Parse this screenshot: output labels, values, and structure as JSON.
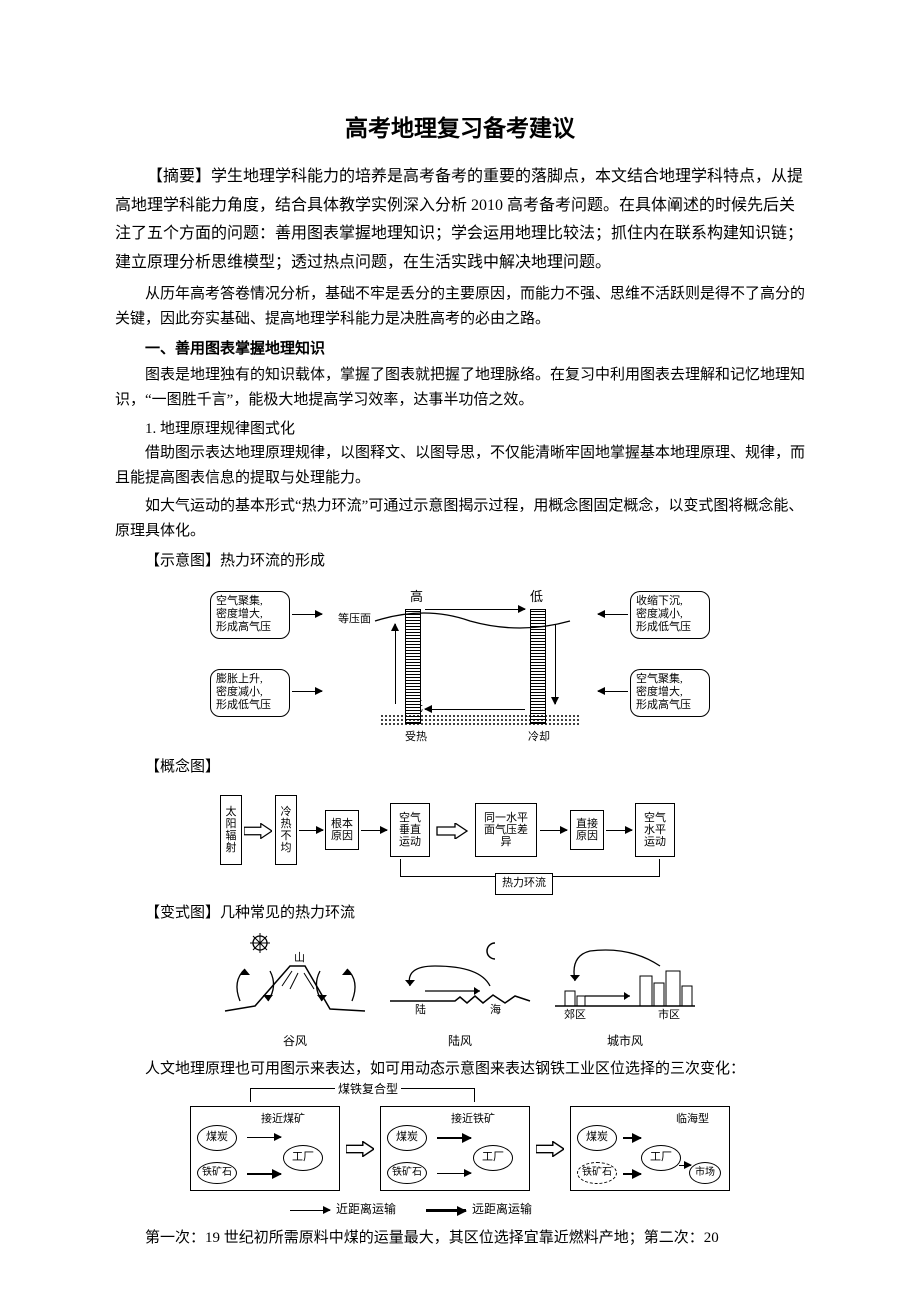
{
  "title": "高考地理复习备考建议",
  "abstract": "【摘要】学生地理学科能力的培养是高考备考的重要的落脚点，本文结合地理学科特点，从提高地理学科能力角度，结合具体教学实例深入分析 2010 高考备考问题。在具体阐述的时候先后关注了五个方面的问题：善用图表掌握地理知识；学会运用地理比较法；抓住内在联系构建知识链；建立原理分析思维模型；透过热点问题，在生活实践中解决地理问题。",
  "intro": "从历年高考答卷情况分析，基础不牢是丢分的主要原因，而能力不强、思维不活跃则是得不了高分的关键，因此夯实基础、提高地理学科能力是决胜高考的必由之路。",
  "section1": {
    "heading": "一、善用图表掌握地理知识",
    "p1": "图表是地理独有的知识载体，掌握了图表就把握了地理脉络。在复习中利用图表去理解和记忆地理知识，“一图胜千言”，能极大地提高学习效率，达事半功倍之效。",
    "sub1": "1. 地理原理规律图式化",
    "p2": "借助图示表达地理原理规律，以图释文、以图导思，不仅能清晰牢固地掌握基本地理原理、规律，而且能提高图表信息的提取与处理能力。",
    "p3": "如大气运动的基本形式“热力环流”可通过示意图揭示过程，用概念图固定概念，以变式图将概念能、原理具体化。"
  },
  "fig1": {
    "label": "【示意图】热力环流的形成",
    "box_tl": "空气聚集,\n密度增大,\n形成高气压",
    "box_tr": "收缩下沉,\n密度减小,\n形成低气压",
    "box_bl": "膨胀上升,\n密度减小,\n形成低气压",
    "box_br": "空气聚集,\n密度增大,\n形成高气压",
    "high": "高",
    "low": "低",
    "isobar": "等压面",
    "heated": "受热",
    "cooled": "冷却"
  },
  "fig2": {
    "label": "【概念图】",
    "n1": "太\n阳\n辐\n射",
    "n2": "冷\n热\n不\n均",
    "n3": "根本\n原因",
    "n4": "空气\n垂直\n运动",
    "n5": "同一水平\n面气压差\n异",
    "n6": "直接\n原因",
    "n7": "空气\n水平\n运动",
    "bottom": "热力环流"
  },
  "fig3": {
    "label": "【变式图】几种常见的热力环流",
    "l1": "谷风",
    "l2": "陆风",
    "l3": "城市风",
    "sub_mountain": "山",
    "sub_sea": "海",
    "sub_land": "陆",
    "sub_suburb": "郊区",
    "sub_city": "市区"
  },
  "human_geo": "人文地理原理也可用图示来表达，如可用动态示意图来表达钢铁工业区位选择的三次变化：",
  "fig4": {
    "type_label": "煤铁复合型",
    "near_coal": "接近煤矿",
    "near_iron": "接近铁矿",
    "coastal": "临海型",
    "coal": "煤炭",
    "iron": "铁矿石",
    "factory": "工厂",
    "market": "市场",
    "legend_thin": "近距离运输",
    "legend_thick": "远距离运输"
  },
  "closing": "第一次：19 世纪初所需原料中煤的运量最大，其区位选择宜靠近燃料产地；第二次：20"
}
